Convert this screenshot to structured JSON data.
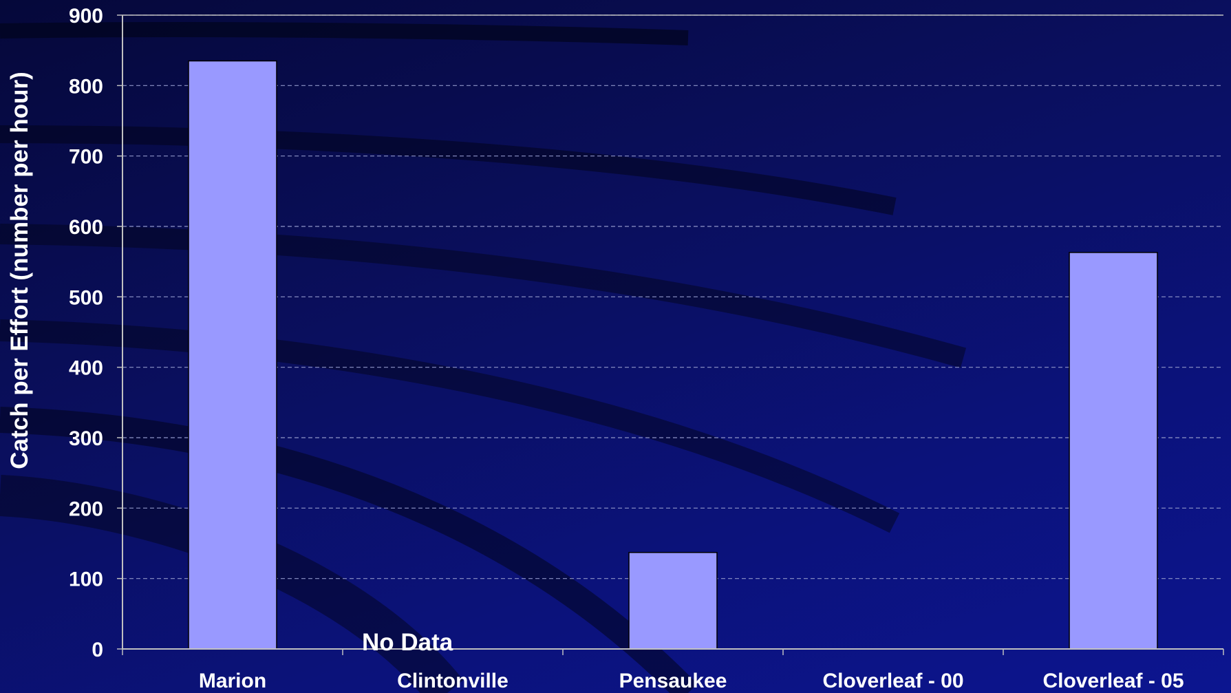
{
  "chart_data": {
    "type": "bar",
    "title": "",
    "xlabel": "",
    "ylabel": "Catch per Effort (number per hour)",
    "ylim": [
      0,
      900
    ],
    "yticks": [
      0,
      100,
      200,
      300,
      400,
      500,
      600,
      700,
      800,
      900
    ],
    "grid": true,
    "legend": "none",
    "categories": [
      "Marion",
      "Clintonville",
      "Pensaukee",
      "Cloverleaf - 00",
      "Cloverleaf - 05"
    ],
    "values": [
      835,
      null,
      137,
      null,
      563
    ],
    "annotations": [
      {
        "text": "No Data",
        "category": "Clintonville"
      }
    ],
    "colors": {
      "bar_fill": "#9999ff",
      "bar_stroke": "#000000",
      "background": "#0a0f5e",
      "axis": "#c0c0c0",
      "text": "#ffffff"
    }
  }
}
